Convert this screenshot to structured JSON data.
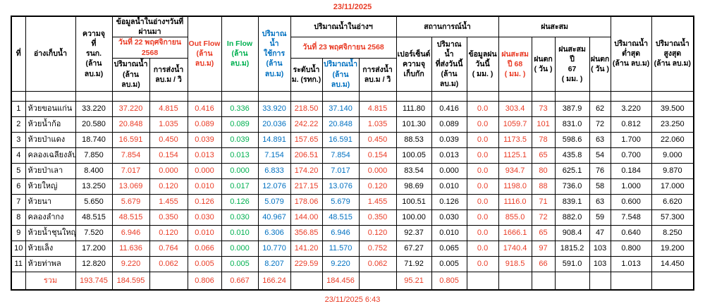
{
  "page": {
    "top_date": "23/11/2025",
    "footer_datetime": "23/11/2025 6:43"
  },
  "colors": {
    "red": "#e93b25",
    "green": "#00b050",
    "blue": "#0070c0"
  },
  "table": {
    "column_keys": [
      "no",
      "reservoir-name",
      "capacity-rnk",
      "volume-prev",
      "discharge-prev",
      "out-flow",
      "in-flow",
      "usable-volume",
      "water-level",
      "volume-today",
      "discharge-today",
      "percent-capacity",
      "water-sent-today",
      "rain-today",
      "rain-accum-2568",
      "rain-days-2568",
      "rain-accum-2567",
      "rain-days-2567",
      "volume-min",
      "volume-max"
    ],
    "headers": {
      "no": "ที่",
      "reservoir": "อ่างเก็บน้ำ",
      "capacity": "ความจุ\nที่\nรนก.\n(ล้าน ลบ.ม)",
      "prev": {
        "title": "ข้อมูลน้ำในอ่างฯวันที่ผ่านมา",
        "date": "วันที่ 22 พฤศจิกายน 2568",
        "cols": [
          "ปริมาณน้ำ\n(ล้าน ลบ.ม)",
          "การส่งน้ำ\nลบ.ม / วิ"
        ]
      },
      "outflow": "Out Flow\n(ล้าน ลบ.ม)",
      "inflow": "In Flow\n(ล้าน ลบ.ม)",
      "usable": "ปริมาณน้ำ\nใช้การ\n(ล้าน ลบ.ม)",
      "today": {
        "title": "ปริมาณน้ำในอ่างฯ",
        "date": "วันที่ 23 พฤศจิกายน 2568",
        "cols": [
          "ระดับน้ำ\nม. (รทก.)",
          "ปริมาณน้ำ\n(ล้าน ลบ.ม)",
          "การส่งน้ำ\nลบ.ม / วิ"
        ]
      },
      "situation": {
        "title": "สถานการณ์น้ำ",
        "cols": [
          "เปอร์เซ็นต์\nความจุ\nเก็บกัก",
          "ปริมาณน้ำ\nที่ส่งวันนี้\n(ล้าน ลบ.ม)",
          "ข้อมูลฝน\nวันนี้\n( มม. )"
        ]
      },
      "rain": {
        "title": "ฝนสะสม",
        "cols": [
          "ฝนสะสม\nปี 68\n( มม. )",
          "ฝนตก\n( วัน )",
          "ฝนสะสม ปี\n67\n( มม. )",
          "ฝนตก\n( วัน )"
        ]
      },
      "min": "ปริมาณน้ำ\nต่ำสุด\n(ล้าน ลบ.ม)",
      "max": "ปริมาณน้ำ\nสูงสุด\n(ล้าน ลบ.ม)"
    },
    "rows": [
      [
        "1",
        "ห้วยขอนแก่น",
        "33.220",
        "37.220",
        "4.815",
        "0.416",
        "0.336",
        "33.920",
        "218.50",
        "37.140",
        "4.815",
        "111.80",
        "0.416",
        "0.0",
        "303.4",
        "73",
        "387.9",
        "62",
        "3.220",
        "39.500"
      ],
      [
        "2",
        "ห้วยน้ำก้อ",
        "20.580",
        "20.848",
        "1.035",
        "0.089",
        "0.089",
        "20.036",
        "242.22",
        "20.848",
        "1.035",
        "101.30",
        "0.089",
        "0.0",
        "1059.7",
        "101",
        "831.0",
        "72",
        "0.812",
        "23.250"
      ],
      [
        "3",
        "ห้วยป่าแดง",
        "18.740",
        "16.591",
        "0.450",
        "0.039",
        "0.039",
        "14.891",
        "157.65",
        "16.591",
        "0.450",
        "88.53",
        "0.039",
        "0.0",
        "1173.5",
        "78",
        "598.6",
        "63",
        "1.700",
        "22.060"
      ],
      [
        "4",
        "คลองเฉลียงลับ",
        "7.850",
        "7.854",
        "0.154",
        "0.013",
        "0.013",
        "7.154",
        "206.51",
        "7.854",
        "0.154",
        "100.05",
        "0.013",
        "0.0",
        "1125.1",
        "65",
        "435.8",
        "54",
        "0.700",
        "9.000"
      ],
      [
        "5",
        "ห้วยป่าเลา",
        "8.400",
        "7.017",
        "0.000",
        "0.000",
        "0.000",
        "6.833",
        "174.20",
        "7.017",
        "0.000",
        "83.54",
        "0.000",
        "0.0",
        "934.7",
        "80",
        "625.1",
        "76",
        "0.184",
        "9.870"
      ],
      [
        "6",
        "ห้วยใหญ่",
        "13.250",
        "13.069",
        "0.120",
        "0.010",
        "0.017",
        "12.076",
        "217.15",
        "13.076",
        "0.120",
        "98.69",
        "0.010",
        "0.0",
        "1198.0",
        "88",
        "736.0",
        "58",
        "1.000",
        "17.000"
      ],
      [
        "7",
        "ห้วยนา",
        "5.650",
        "5.679",
        "1.455",
        "0.126",
        "0.126",
        "5.079",
        "178.06",
        "5.679",
        "1.455",
        "100.51",
        "0.126",
        "0.0",
        "1116.0",
        "71",
        "839.1",
        "63",
        "0.600",
        "6.620"
      ],
      [
        "8",
        "คลองลำกง",
        "48.515",
        "48.515",
        "0.350",
        "0.030",
        "0.030",
        "40.967",
        "144.00",
        "48.515",
        "0.350",
        "100.00",
        "0.030",
        "0.0",
        "855.0",
        "72",
        "882.0",
        "59",
        "7.548",
        "57.300"
      ],
      [
        "9",
        "ห้วยน้ำชุนใหญ่",
        "7.520",
        "6.946",
        "0.120",
        "0.010",
        "0.010",
        "6.306",
        "356.85",
        "6.946",
        "0.120",
        "92.37",
        "0.010",
        "0.0",
        "1666.1",
        "65",
        "908.4",
        "47",
        "0.640",
        "8.250"
      ],
      [
        "10",
        "ห้วยเล็ง",
        "17.200",
        "11.636",
        "0.764",
        "0.066",
        "0.000",
        "10.770",
        "141.20",
        "11.570",
        "0.752",
        "67.27",
        "0.065",
        "0.0",
        "1740.4",
        "97",
        "1815.2",
        "103",
        "0.800",
        "19.200"
      ],
      [
        "11",
        "ห้วยท่าพล",
        "12.820",
        "9.220",
        "0.062",
        "0.005",
        "0.005",
        "8.207",
        "229.59",
        "9.220",
        "0.062",
        "71.92",
        "0.005",
        "0.0",
        "918.5",
        "66",
        "591.0",
        "103",
        "1.013",
        "14.450"
      ]
    ],
    "total_row": [
      "",
      "รวม",
      "193.745",
      "184.595",
      "",
      "0.806",
      "0.667",
      "166.24",
      "",
      "184.456",
      "",
      "95.21",
      "0.805",
      "",
      "",
      "",
      "",
      "",
      "",
      ""
    ]
  }
}
